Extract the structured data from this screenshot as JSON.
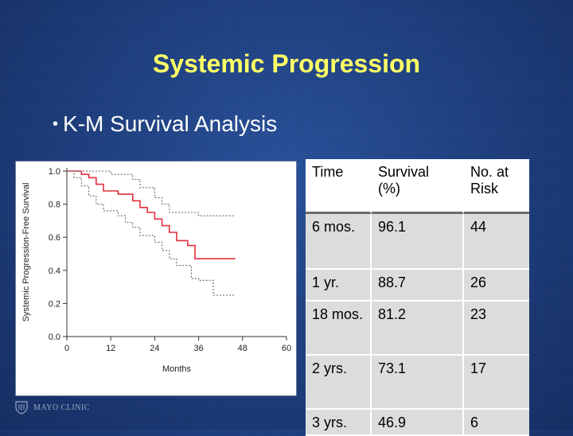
{
  "slide": {
    "title": "Systemic Progression",
    "bullet": "K-M Survival Analysis",
    "logo_text": "MAYO CLINIC"
  },
  "colors": {
    "background": "#1d3d7a",
    "title": "#ffff66",
    "curve": "#e0303f",
    "ci": "#666666"
  },
  "chart_data": {
    "type": "line",
    "xlabel": "Months",
    "ylabel": "Systemic Progression-Free Survival",
    "xlim": [
      0,
      60
    ],
    "ylim": [
      0,
      1.0
    ],
    "x_ticks": [
      "0",
      "12",
      "24",
      "36",
      "48",
      "60"
    ],
    "y_ticks": [
      "0.0",
      "0.2",
      "0.4",
      "0.6",
      "0.8",
      "1.0"
    ],
    "series": [
      {
        "role": "estimate",
        "style": "solid",
        "color": "#e0303f",
        "points": [
          [
            0,
            1.0
          ],
          [
            4,
            1.0
          ],
          [
            4,
            0.98
          ],
          [
            6,
            0.98
          ],
          [
            6,
            0.96
          ],
          [
            8,
            0.96
          ],
          [
            8,
            0.92
          ],
          [
            10,
            0.92
          ],
          [
            10,
            0.88
          ],
          [
            14,
            0.88
          ],
          [
            14,
            0.86
          ],
          [
            18,
            0.86
          ],
          [
            18,
            0.82
          ],
          [
            20,
            0.82
          ],
          [
            20,
            0.78
          ],
          [
            22,
            0.78
          ],
          [
            22,
            0.75
          ],
          [
            24,
            0.75
          ],
          [
            24,
            0.71
          ],
          [
            26,
            0.71
          ],
          [
            26,
            0.67
          ],
          [
            28,
            0.67
          ],
          [
            28,
            0.63
          ],
          [
            30,
            0.63
          ],
          [
            30,
            0.58
          ],
          [
            33,
            0.58
          ],
          [
            33,
            0.55
          ],
          [
            35,
            0.55
          ],
          [
            35,
            0.47
          ],
          [
            46,
            0.47
          ]
        ]
      },
      {
        "role": "upper-ci",
        "style": "dotted",
        "color": "#666666",
        "points": [
          [
            0,
            1.0
          ],
          [
            12,
            1.0
          ],
          [
            12,
            0.98
          ],
          [
            18,
            0.98
          ],
          [
            18,
            0.95
          ],
          [
            20,
            0.95
          ],
          [
            20,
            0.9
          ],
          [
            24,
            0.9
          ],
          [
            24,
            0.84
          ],
          [
            26,
            0.84
          ],
          [
            26,
            0.8
          ],
          [
            28,
            0.8
          ],
          [
            28,
            0.75
          ],
          [
            36,
            0.75
          ],
          [
            36,
            0.73
          ],
          [
            46,
            0.73
          ]
        ]
      },
      {
        "role": "lower-ci",
        "style": "dotted",
        "color": "#666666",
        "points": [
          [
            0,
            1.0
          ],
          [
            2,
            1.0
          ],
          [
            2,
            0.96
          ],
          [
            4,
            0.96
          ],
          [
            4,
            0.91
          ],
          [
            6,
            0.91
          ],
          [
            6,
            0.85
          ],
          [
            8,
            0.85
          ],
          [
            8,
            0.8
          ],
          [
            10,
            0.8
          ],
          [
            10,
            0.76
          ],
          [
            14,
            0.76
          ],
          [
            14,
            0.73
          ],
          [
            16,
            0.73
          ],
          [
            16,
            0.69
          ],
          [
            18,
            0.69
          ],
          [
            18,
            0.66
          ],
          [
            20,
            0.66
          ],
          [
            20,
            0.61
          ],
          [
            24,
            0.61
          ],
          [
            24,
            0.57
          ],
          [
            26,
            0.57
          ],
          [
            26,
            0.52
          ],
          [
            28,
            0.52
          ],
          [
            28,
            0.47
          ],
          [
            30,
            0.47
          ],
          [
            30,
            0.43
          ],
          [
            34,
            0.43
          ],
          [
            34,
            0.35
          ],
          [
            36,
            0.35
          ],
          [
            36,
            0.34
          ],
          [
            40,
            0.34
          ],
          [
            40,
            0.25
          ],
          [
            46,
            0.25
          ]
        ]
      }
    ]
  },
  "table": {
    "headers": [
      "Time",
      "Survival\n(%)",
      "No. at\nRisk"
    ],
    "rows": [
      [
        "6 mos.",
        "96.1",
        "44"
      ],
      [
        "1 yr.",
        "88.7",
        "26"
      ],
      [
        "18 mos.",
        "81.2",
        "23"
      ],
      [
        "2 yrs.",
        "73.1",
        "17"
      ],
      [
        "3 yrs.",
        "46.9",
        "6"
      ]
    ]
  }
}
